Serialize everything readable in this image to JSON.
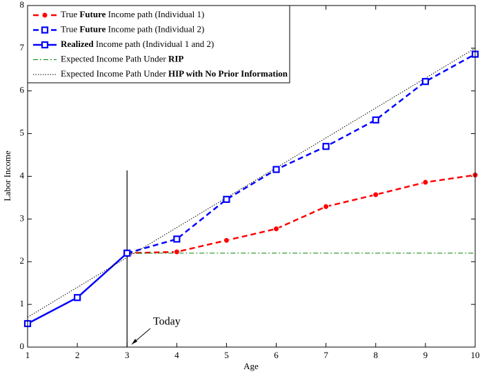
{
  "chart_data": {
    "type": "line",
    "xlabel": "Age",
    "ylabel": "Labor Income",
    "xlim": [
      1,
      10
    ],
    "xticks": [
      1,
      2,
      3,
      4,
      5,
      6,
      7,
      8,
      9,
      10
    ],
    "ylim": [
      0,
      8
    ],
    "yticks": [
      0,
      1,
      2,
      3,
      4,
      5,
      6,
      7,
      8
    ],
    "legend": "upper left",
    "annotation": {
      "text": "Today",
      "x": 3
    },
    "series": [
      {
        "name": "True Future Income path (Individual 1)",
        "emphasis": "Future",
        "color": "#ff0000",
        "style": "dashed",
        "marker": "circle",
        "x": [
          3,
          4,
          5,
          6,
          7,
          8,
          9,
          10
        ],
        "values": [
          2.2,
          2.23,
          2.5,
          2.77,
          3.29,
          3.57,
          3.86,
          4.03
        ]
      },
      {
        "name": "True Future Income path (Individual 2)",
        "emphasis": "Future",
        "color": "#0000ff",
        "style": "dashed",
        "marker": "square",
        "x": [
          3,
          4,
          5,
          6,
          7,
          8,
          9,
          10
        ],
        "values": [
          2.2,
          2.53,
          3.46,
          4.16,
          4.7,
          5.32,
          6.22,
          6.86
        ]
      },
      {
        "name": "Realized Income path (Individual 1 and 2)",
        "emphasis": "Realized",
        "color": "#0000ff",
        "style": "solid",
        "marker": "square",
        "x": [
          1,
          2,
          3
        ],
        "values": [
          0.55,
          1.16,
          2.2
        ]
      },
      {
        "name": "Expected Income Path Under RIP",
        "emphasis": "RIP",
        "color": "#008000",
        "style": "dashdot",
        "marker": "none",
        "x": [
          3,
          10
        ],
        "values": [
          2.2,
          2.2
        ]
      },
      {
        "name": "Expected Income Path Under HIP with No Prior Information",
        "emphasis": "HIP with No Prior Information",
        "color": "#000000",
        "style": "dotted",
        "marker": "none",
        "x": [
          1,
          10
        ],
        "values": [
          0.7,
          7.0
        ]
      }
    ]
  }
}
